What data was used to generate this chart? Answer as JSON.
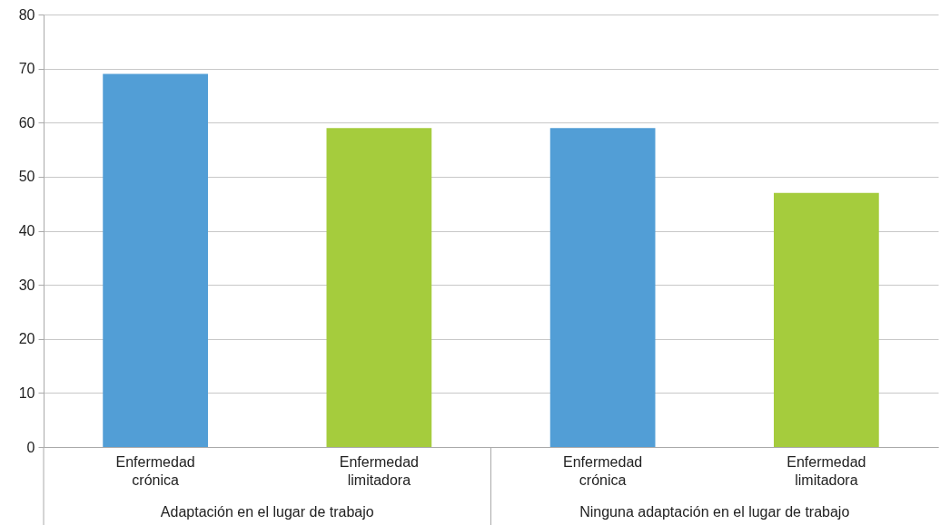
{
  "chart_data": {
    "type": "bar",
    "categories": [
      "Enfermedad crónica",
      "Enfermedad limitadora",
      "Enfermedad crónica",
      "Enfermedad limitadora"
    ],
    "values": [
      69,
      59,
      59,
      47
    ],
    "colors": [
      "#529ed6",
      "#a5cc3d",
      "#529ed6",
      "#a5cc3d"
    ],
    "ylim": [
      0,
      80
    ],
    "yticks": [
      0,
      10,
      20,
      30,
      40,
      50,
      60,
      70,
      80
    ],
    "grid": "y",
    "annotations": [
      "Adaptación en el lugar de trabajo",
      "Ninguna adaptación en el lugar de trabajo"
    ]
  }
}
